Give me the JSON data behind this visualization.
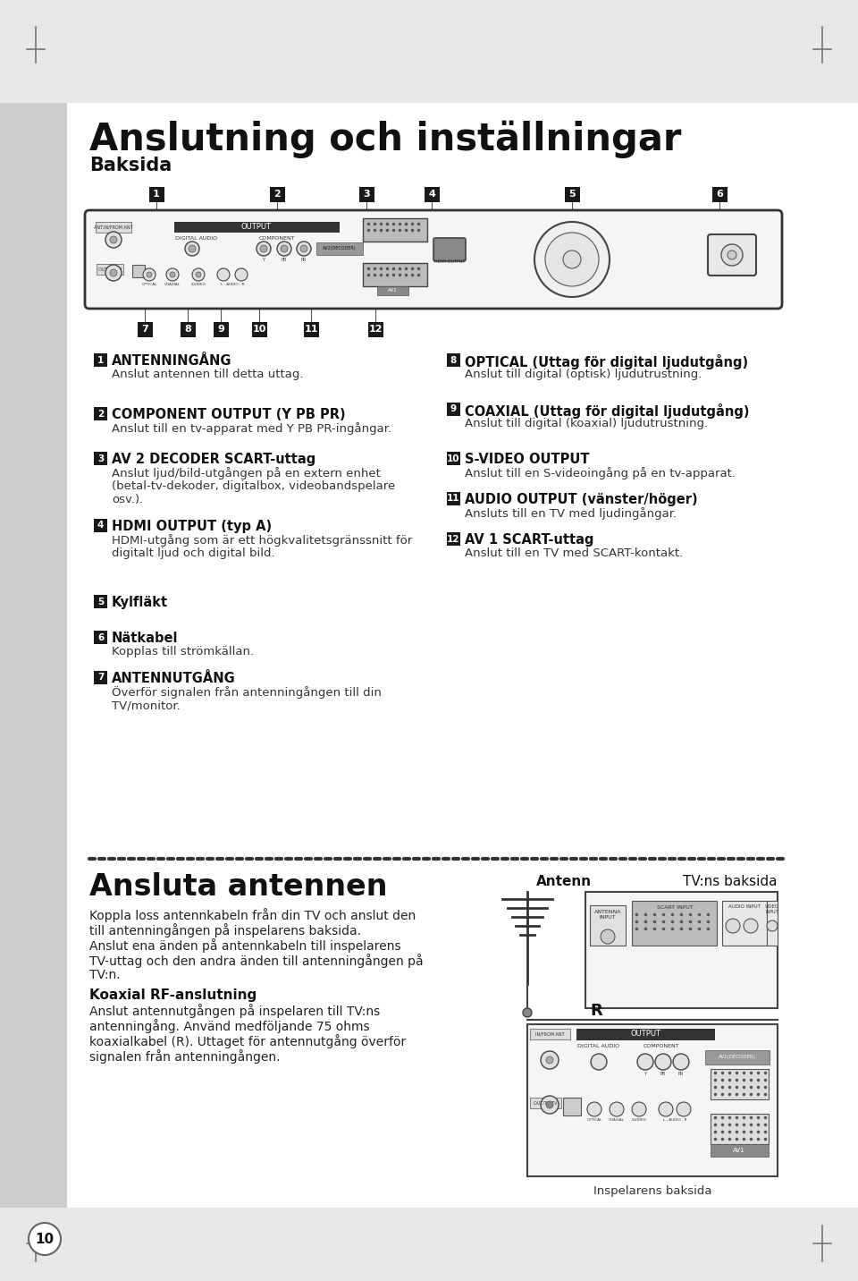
{
  "bg_color": "#ffffff",
  "left_sidebar_color": "#cccccc",
  "page_bg": "#e8e8e8",
  "title": "Anslutning och inställningar",
  "subtitle": "Baksida",
  "section2_title": "Ansluta antennen",
  "items_left": [
    {
      "num": "1",
      "heading": "ANTENNINGÅNG",
      "body": "Anslut antennen till detta uttag."
    },
    {
      "num": "2",
      "heading": "COMPONENT OUTPUT (Y PB PR)",
      "body": "Anslut till en tv-apparat med Y PB PR-ingångar."
    },
    {
      "num": "3",
      "heading": "AV 2 DECODER SCART-uttag",
      "body": "Anslut ljud/bild-utgången på en extern enhet\n(betal-tv-dekoder, digitalbox, videobandspelare\nosv.)."
    },
    {
      "num": "4",
      "heading": "HDMI OUTPUT (typ A)",
      "body": "HDMI-utgång som är ett högkvalitetsgränssnitt för\ndigitalt ljud och digital bild."
    },
    {
      "num": "5",
      "heading": "Kylfläkt",
      "body": ""
    },
    {
      "num": "6",
      "heading": "Nätkabel",
      "body": "Kopplas till strömkällan."
    },
    {
      "num": "7",
      "heading": "ANTENNUTGÅNG",
      "body": "Överför signalen från antenningången till din\nTV/monitor."
    }
  ],
  "items_right": [
    {
      "num": "8",
      "heading": "OPTICAL (Uttag för digital ljudutgång)",
      "body": "Anslut till digital (optisk) ljudutrustning."
    },
    {
      "num": "9",
      "heading": "COAXIAL (Uttag för digital ljudutgång)",
      "body": "Anslut till digital (koaxial) ljudutrustning."
    },
    {
      "num": "10",
      "heading": "S-VIDEO OUTPUT",
      "body": "Anslut till en S-videoingång på en tv-apparat."
    },
    {
      "num": "11",
      "heading": "AUDIO OUTPUT (vänster/höger)",
      "body": "Ansluts till en TV med ljudingångar."
    },
    {
      "num": "12",
      "heading": "AV 1 SCART-uttag",
      "body": "Anslut till en TV med SCART-kontakt."
    }
  ],
  "section2_body1": "Koppla loss antennkabeln från din TV och anslut den\ntill antenningången på inspelarens baksida.\nAnslut ena änden på antennkabeln till inspelarens\nTV-uttag och den andra änden till antenningången på\nTV:n.",
  "section2_body2_heading": "Koaxial RF-anslutning",
  "section2_body2": "Anslut antennutgången på inspelaren till TV:ns\nantenningång. Använd medföljande 75 ohms\nkoaxialkabel (R). Uttaget för antennutgång överför\nsignalen från antenningången.",
  "antenn_label": "Antenn",
  "tv_label": "TV:ns baksida",
  "r_label": "R",
  "inspelarens_label": "Inspelarens baksida",
  "page_number": "10"
}
